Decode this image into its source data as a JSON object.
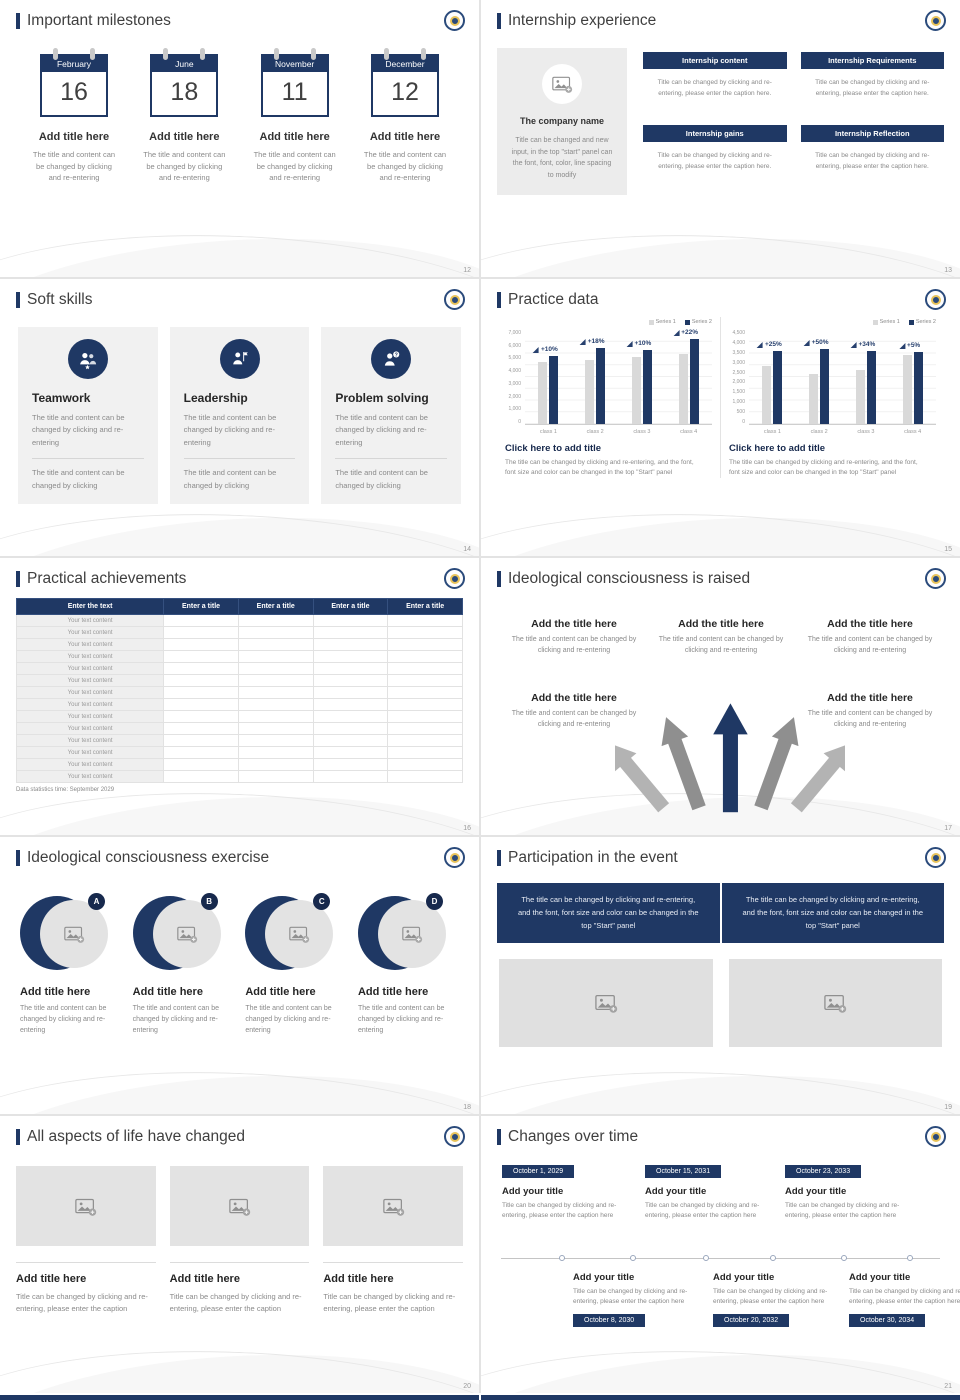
{
  "accent_color": "#1f3864",
  "slides": [
    {
      "title": "Important milestones",
      "page": "12",
      "items": [
        {
          "month": "February",
          "day": "16",
          "item_title": "Add title here",
          "caption": "The title and content can be changed by clicking and re-entering"
        },
        {
          "month": "June",
          "day": "18",
          "item_title": "Add title here",
          "caption": "The title and content can be changed by clicking and re-entering"
        },
        {
          "month": "November",
          "day": "11",
          "item_title": "Add title here",
          "caption": "The title and content can be changed by clicking and re-entering"
        },
        {
          "month": "December",
          "day": "12",
          "item_title": "Add title here",
          "caption": "The title and content can be changed by clicking and re-entering"
        }
      ]
    },
    {
      "title": "Internship experience",
      "page": "13",
      "company_card": {
        "icon": "image-placeholder-icon",
        "name": "The company name",
        "caption": "Title can be changed and new input, in the top \"start\" panel can the font, font, color, line spacing to modify"
      },
      "sections": [
        {
          "label": "Internship content",
          "caption": "Title can be changed by clicking and re-entering, please enter the caption here."
        },
        {
          "label": "Internship Requirements",
          "caption": "Title can be changed by clicking and re-entering, please enter the caption here."
        },
        {
          "label": "Internship gains",
          "caption": "Title can be changed by clicking and re-entering, please enter the caption here."
        },
        {
          "label": "Internship Reflection",
          "caption": "Title can be changed by clicking and re-entering, please enter the caption here."
        }
      ]
    },
    {
      "title": "Soft skills",
      "page": "14",
      "cards": [
        {
          "icon": "teamwork-icon",
          "card_title": "Teamwork",
          "caption_top": "The title and content can be changed by clicking and re-entering",
          "caption_bottom": "The title and content can be changed by clicking"
        },
        {
          "icon": "leadership-icon",
          "card_title": "Leadership",
          "caption_top": "The title and content can be changed by clicking and re-entering",
          "caption_bottom": "The title and content can be changed by clicking"
        },
        {
          "icon": "problem-solving-icon",
          "card_title": "Problem solving",
          "caption_top": "The title and content can be changed by clicking and re-entering",
          "caption_bottom": "The title and content can be changed by clicking"
        }
      ]
    },
    {
      "title": "Practice data",
      "page": "15",
      "charts": [
        {
          "type": "bar",
          "legend": [
            "Series 1",
            "Series 2"
          ],
          "categories": [
            "class 1",
            "class 2",
            "class 3",
            "class 4"
          ],
          "series": [
            {
              "name": "Series 1",
              "color": "#d9d9d9",
              "values": [
                4600,
                4800,
                5000,
                5200
              ]
            },
            {
              "name": "Series 2",
              "color": "#1f3864",
              "values": [
                5060,
                5660,
                5500,
                6340
              ]
            }
          ],
          "pct_labels": [
            "+10%",
            "+18%",
            "+10%",
            "+22%"
          ],
          "ymax": 7000,
          "yticks": [
            "7,000",
            "6,000",
            "5,000",
            "4,000",
            "3,000",
            "2,000",
            "1,000",
            "0"
          ]
        },
        {
          "type": "bar",
          "legend": [
            "Series 1",
            "Series 2"
          ],
          "categories": [
            "class 1",
            "class 2",
            "class 3",
            "class 4"
          ],
          "series": [
            {
              "name": "Series 1",
              "color": "#d9d9d9",
              "values": [
                2800,
                2400,
                2600,
                3300
              ]
            },
            {
              "name": "Series 2",
              "color": "#1f3864",
              "values": [
                3500,
                3600,
                3480,
                3460
              ]
            }
          ],
          "pct_labels": [
            "+25%",
            "+50%",
            "+34%",
            "+5%"
          ],
          "ymax": 4500,
          "yticks": [
            "4,500",
            "4,000",
            "3,500",
            "3,000",
            "2,500",
            "2,000",
            "1,500",
            "1,000",
            "500",
            "0"
          ]
        }
      ],
      "blocks": [
        {
          "cta": "Click here to add title",
          "caption": "The title can be changed by clicking and re-entering, and the font, font size and color can be changed in the top \"Start\" panel"
        },
        {
          "cta": "Click here to add title",
          "caption": "The title can be changed by clicking and re-entering, and the font, font size and color can be changed in the top \"Start\" panel"
        }
      ]
    },
    {
      "title": "Practical achievements",
      "page": "16",
      "table": {
        "headers": [
          "Enter the text",
          "Enter a title",
          "Enter a title",
          "Enter a title",
          "Enter a title"
        ],
        "row_label": "Your text content",
        "row_count": 14
      },
      "footnote": "Data statistics time: September 2029"
    },
    {
      "title": "Ideological consciousness is raised",
      "page": "17",
      "blocks": [
        {
          "block_title": "Add the title here",
          "caption": "The title and content can be changed by clicking and re-entering"
        },
        {
          "block_title": "Add the title here",
          "caption": "The title and content can be changed by clicking and re-entering"
        },
        {
          "block_title": "Add the title here",
          "caption": "The title and content can be changed by clicking and re-entering"
        },
        {
          "block_title": "Add the title here",
          "caption": "The title and content can be changed by clicking and re-entering"
        },
        {
          "block_title": "Add the title here",
          "caption": "The title and content can be changed by clicking and re-entering"
        }
      ]
    },
    {
      "title": "Ideological consciousness exercise",
      "page": "18",
      "items": [
        {
          "letter": "A",
          "item_title": "Add title here",
          "caption": "The title and content can be changed by clicking and re-entering"
        },
        {
          "letter": "B",
          "item_title": "Add title here",
          "caption": "The title and content can be changed by clicking and re-entering"
        },
        {
          "letter": "C",
          "item_title": "Add title here",
          "caption": "The title and content can be changed by clicking and re-entering"
        },
        {
          "letter": "D",
          "item_title": "Add title here",
          "caption": "The title and content can be changed by clicking and re-entering"
        }
      ]
    },
    {
      "title": "Participation in the event",
      "page": "19",
      "banner_texts": [
        "The title can be changed by clicking and re-entering, and the font, font size and color can be changed in the top \"Start\" panel",
        "The title can be changed by clicking and re-entering, and the font, font size and color can be changed in the top \"Start\" panel"
      ]
    },
    {
      "title": "All aspects of life have changed",
      "page": "20",
      "items": [
        {
          "item_title": "Add title here",
          "caption": "Title can be changed by clicking and re-entering, please enter the caption"
        },
        {
          "item_title": "Add title here",
          "caption": "Title can be changed by clicking and re-entering, please enter the caption"
        },
        {
          "item_title": "Add title here",
          "caption": "Title can be changed by clicking and re-entering, please enter the caption"
        }
      ]
    },
    {
      "title": "Changes over time",
      "page": "21",
      "timeline": {
        "top": [
          {
            "date": "October 1, 2029",
            "item_title": "Add your title",
            "caption": "Title can be changed by clicking and re-entering, please enter the caption here"
          },
          {
            "date": "October 15, 2031",
            "item_title": "Add your title",
            "caption": "Title can be changed by clicking and re-entering, please enter the caption here"
          },
          {
            "date": "October 23, 2033",
            "item_title": "Add your title",
            "caption": "Title can be changed by clicking and re-entering, please enter the caption here"
          }
        ],
        "bottom": [
          {
            "date": "October 8, 2030",
            "item_title": "Add your title",
            "caption": "Title can be changed by clicking and re-entering, please enter the caption here"
          },
          {
            "date": "October 20, 2032",
            "item_title": "Add your title",
            "caption": "Title can be changed by clicking and re-entering, please enter the caption here"
          },
          {
            "date": "October 30, 2034",
            "item_title": "Add your title",
            "caption": "Title can be changed by clicking and re-entering, please enter the caption here"
          }
        ]
      }
    }
  ]
}
